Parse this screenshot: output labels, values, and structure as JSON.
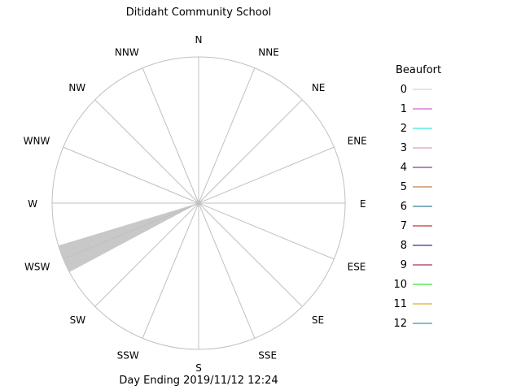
{
  "chart_data": {
    "type": "wind-rose",
    "title": "Ditidaht Community School",
    "footer": "Day Ending 2019/11/12 12:24",
    "directions": [
      "N",
      "NNE",
      "NE",
      "ENE",
      "E",
      "ESE",
      "SE",
      "SSE",
      "S",
      "SSW",
      "SW",
      "WSW",
      "W",
      "WNW",
      "NW",
      "NNW"
    ],
    "petals": [
      {
        "direction": "WSW",
        "beaufort": 0,
        "fraction": 1.0,
        "color": "#c8c8c8"
      }
    ],
    "legend": {
      "title": "Beaufort",
      "items": [
        {
          "label": "0",
          "color": "#c8c8c8"
        },
        {
          "label": "1",
          "color": "#c040c0"
        },
        {
          "label": "2",
          "color": "#00e0e0"
        },
        {
          "label": "3",
          "color": "#e080b0"
        },
        {
          "label": "4",
          "color": "#800080"
        },
        {
          "label": "5",
          "color": "#b06020"
        },
        {
          "label": "6",
          "color": "#006080"
        },
        {
          "label": "7",
          "color": "#b00000"
        },
        {
          "label": "8",
          "color": "#000080"
        },
        {
          "label": "9",
          "color": "#900020"
        },
        {
          "label": "10",
          "color": "#00e000"
        },
        {
          "label": "11",
          "color": "#e09000"
        },
        {
          "label": "12",
          "color": "#008080"
        }
      ]
    }
  }
}
